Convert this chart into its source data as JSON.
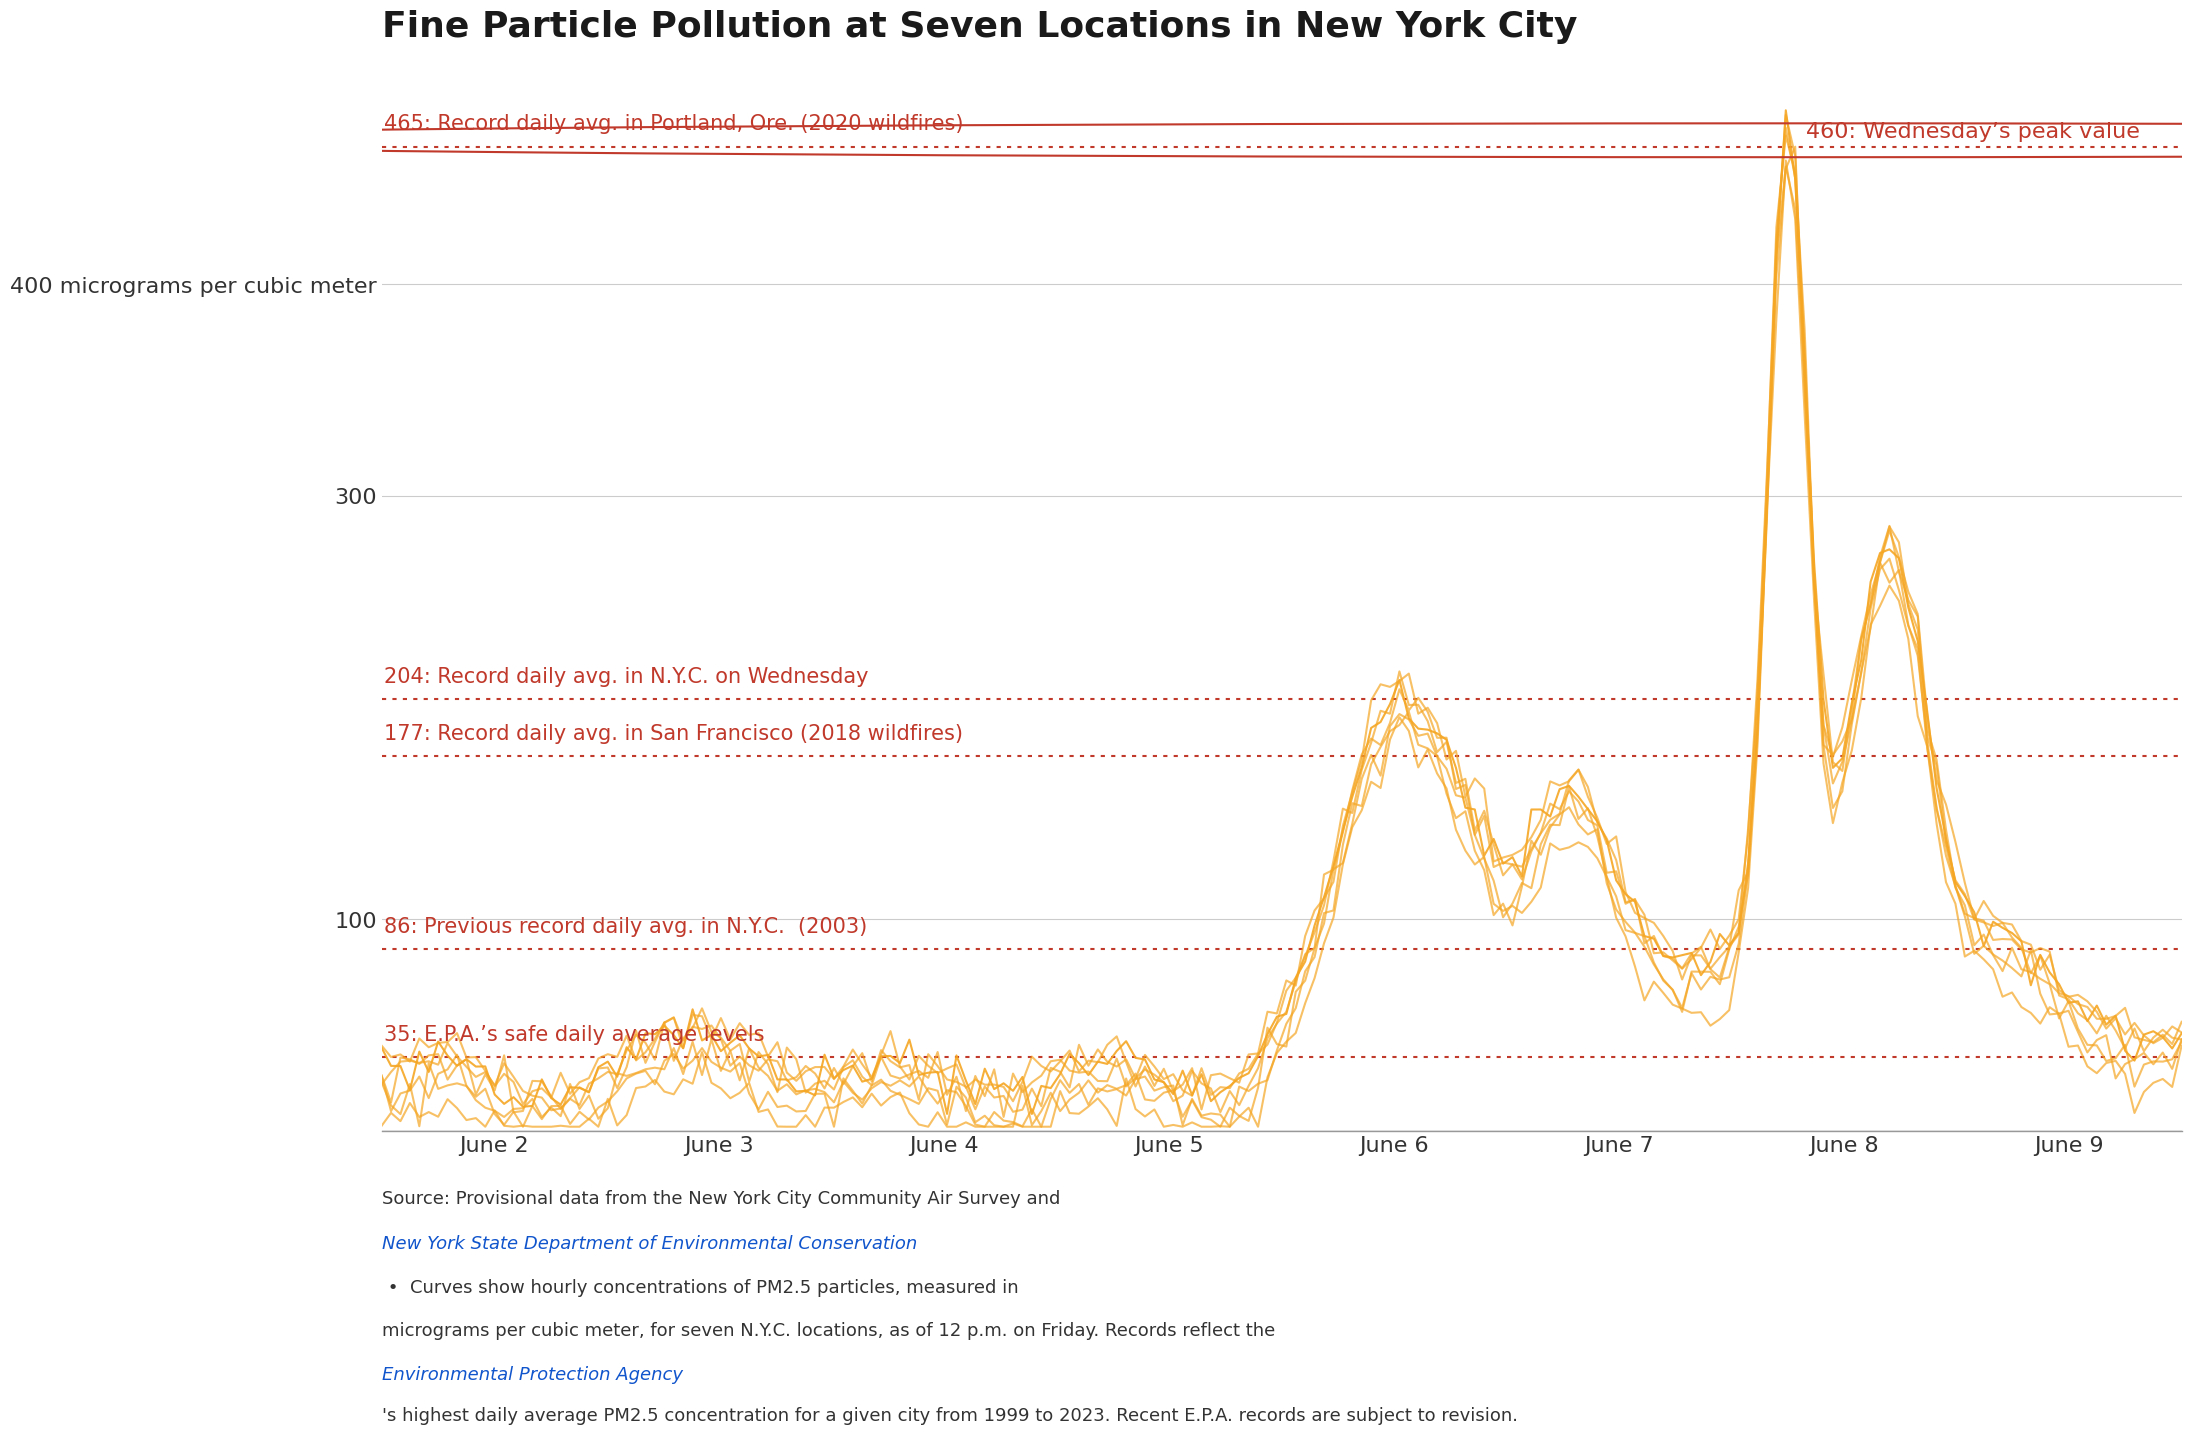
{
  "title": "Fine Particle Pollution at Seven Locations in New York City",
  "title_color": "#1a1a1a",
  "background_color": "#ffffff",
  "line_color": "#F5A623",
  "ref_line_color": "#C0392B",
  "ref_lines": [
    {
      "value": 465,
      "label": "465: Record daily avg. in Portland, Ore. (2020 wildfires)"
    },
    {
      "value": 204,
      "label": "204: Record daily avg. in N.Y.C. on Wednesday"
    },
    {
      "value": 177,
      "label": "177: Record daily avg. in San Francisco (2018 wildfires)"
    },
    {
      "value": 86,
      "label": "86: Previous record daily avg. in N.Y.C.  (2003)"
    },
    {
      "value": 35,
      "label": "35: E.P.A.’s safe daily average levels"
    }
  ],
  "yticks": [
    100,
    300,
    400
  ],
  "ytick_labels": [
    "100",
    "300",
    "400 micrograms per cubic meter"
  ],
  "ylim": [
    0,
    490
  ],
  "xlabel_ticks": [
    "June 2",
    "June 3",
    "June 4",
    "June 5",
    "June 6",
    "June 7",
    "June 8",
    "June 9"
  ],
  "peak_label": "460: Wednesday’s peak value",
  "peak_value": 460,
  "footer_text": "Source: Provisional data from the New York City Community Air Survey and New York State Department of\nEnvironmental Conservation • Curves show hourly concentrations of PM2.5 particles, measured in\nmicrograms per cubic meter, for seven N.Y.C. locations, as of 12 p.m. on Friday. Records reflect the\nEnvironmental Protection Agency’s highest daily average PM2.5 concentration for a given city from 1999 to\n2023. Recent E.P.A. records are subject to revision.",
  "n_lines": 7
}
